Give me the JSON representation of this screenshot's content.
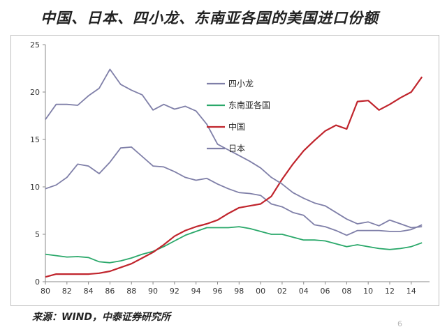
{
  "title": "中国、日本、四小龙、东南亚各国的美国进口份额",
  "source": "来源：WIND，中泰证券研究所",
  "page_number": "6",
  "chart_data": {
    "type": "line",
    "title": "中国、日本、四小龙、东南亚各国的美国进口份额",
    "xlabel": "",
    "ylabel": "",
    "x": [
      1980,
      1981,
      1982,
      1983,
      1984,
      1985,
      1986,
      1987,
      1988,
      1989,
      1990,
      1991,
      1992,
      1993,
      1994,
      1995,
      1996,
      1997,
      1998,
      1999,
      2000,
      2001,
      2002,
      2003,
      2004,
      2005,
      2006,
      2007,
      2008,
      2009,
      2010,
      2011,
      2012,
      2013,
      2014,
      2015
    ],
    "x_ticks": [
      1980,
      1982,
      1984,
      1986,
      1988,
      1990,
      1992,
      1994,
      1996,
      1998,
      2000,
      2002,
      2004,
      2006,
      2008,
      2010,
      2012,
      2014
    ],
    "x_tick_labels": [
      "80",
      "82",
      "84",
      "86",
      "88",
      "90",
      "92",
      "94",
      "96",
      "98",
      "00",
      "02",
      "04",
      "06",
      "08",
      "10",
      "12",
      "14"
    ],
    "xlim": [
      1980,
      2015.7
    ],
    "ylim": [
      0,
      25
    ],
    "y_ticks": [
      0,
      5,
      10,
      15,
      20,
      25
    ],
    "y_tick_labels": [
      "0",
      "5",
      "10",
      "15",
      "20",
      "25"
    ],
    "grid": false,
    "legend_position": "top-center",
    "series": [
      {
        "name": "四小龙",
        "color": "#7f7fa8",
        "values": [
          9.8,
          10.2,
          11.0,
          12.4,
          12.2,
          11.4,
          12.6,
          14.1,
          14.2,
          13.2,
          12.2,
          12.1,
          11.6,
          11.0,
          10.7,
          10.9,
          10.3,
          9.8,
          9.4,
          9.3,
          9.1,
          8.2,
          7.9,
          7.3,
          7.0,
          6.0,
          5.8,
          5.4,
          4.9,
          5.4,
          5.4,
          5.4,
          5.3,
          5.3,
          5.5,
          6.0
        ]
      },
      {
        "name": "东南亚各国",
        "color": "#2aa86a",
        "values": [
          2.9,
          2.75,
          2.6,
          2.65,
          2.55,
          2.1,
          2.0,
          2.2,
          2.5,
          2.9,
          3.2,
          3.7,
          4.3,
          4.9,
          5.3,
          5.7,
          5.7,
          5.7,
          5.8,
          5.6,
          5.3,
          5.0,
          5.0,
          4.7,
          4.4,
          4.4,
          4.3,
          4.0,
          3.7,
          3.9,
          3.7,
          3.5,
          3.4,
          3.5,
          3.7,
          4.1
        ]
      },
      {
        "name": "中国",
        "color": "#c0242c",
        "values": [
          0.5,
          0.8,
          0.8,
          0.8,
          0.8,
          0.9,
          1.1,
          1.5,
          1.9,
          2.5,
          3.1,
          3.9,
          4.8,
          5.4,
          5.8,
          6.1,
          6.5,
          7.2,
          7.8,
          8.0,
          8.2,
          9.0,
          10.8,
          12.4,
          13.8,
          14.9,
          15.9,
          16.5,
          16.1,
          19.0,
          19.1,
          18.1,
          18.7,
          19.4,
          20.0,
          21.6
        ]
      },
      {
        "name": "日本",
        "color": "#7f7fa8",
        "values": [
          17.1,
          18.7,
          18.7,
          18.6,
          19.6,
          20.4,
          22.4,
          20.8,
          20.2,
          19.7,
          18.1,
          18.7,
          18.2,
          18.5,
          18.0,
          16.6,
          14.5,
          13.9,
          13.3,
          12.7,
          12.0,
          11.0,
          10.3,
          9.4,
          8.8,
          8.3,
          8.0,
          7.3,
          6.6,
          6.1,
          6.3,
          5.9,
          6.5,
          6.1,
          5.7,
          5.8
        ]
      }
    ]
  }
}
